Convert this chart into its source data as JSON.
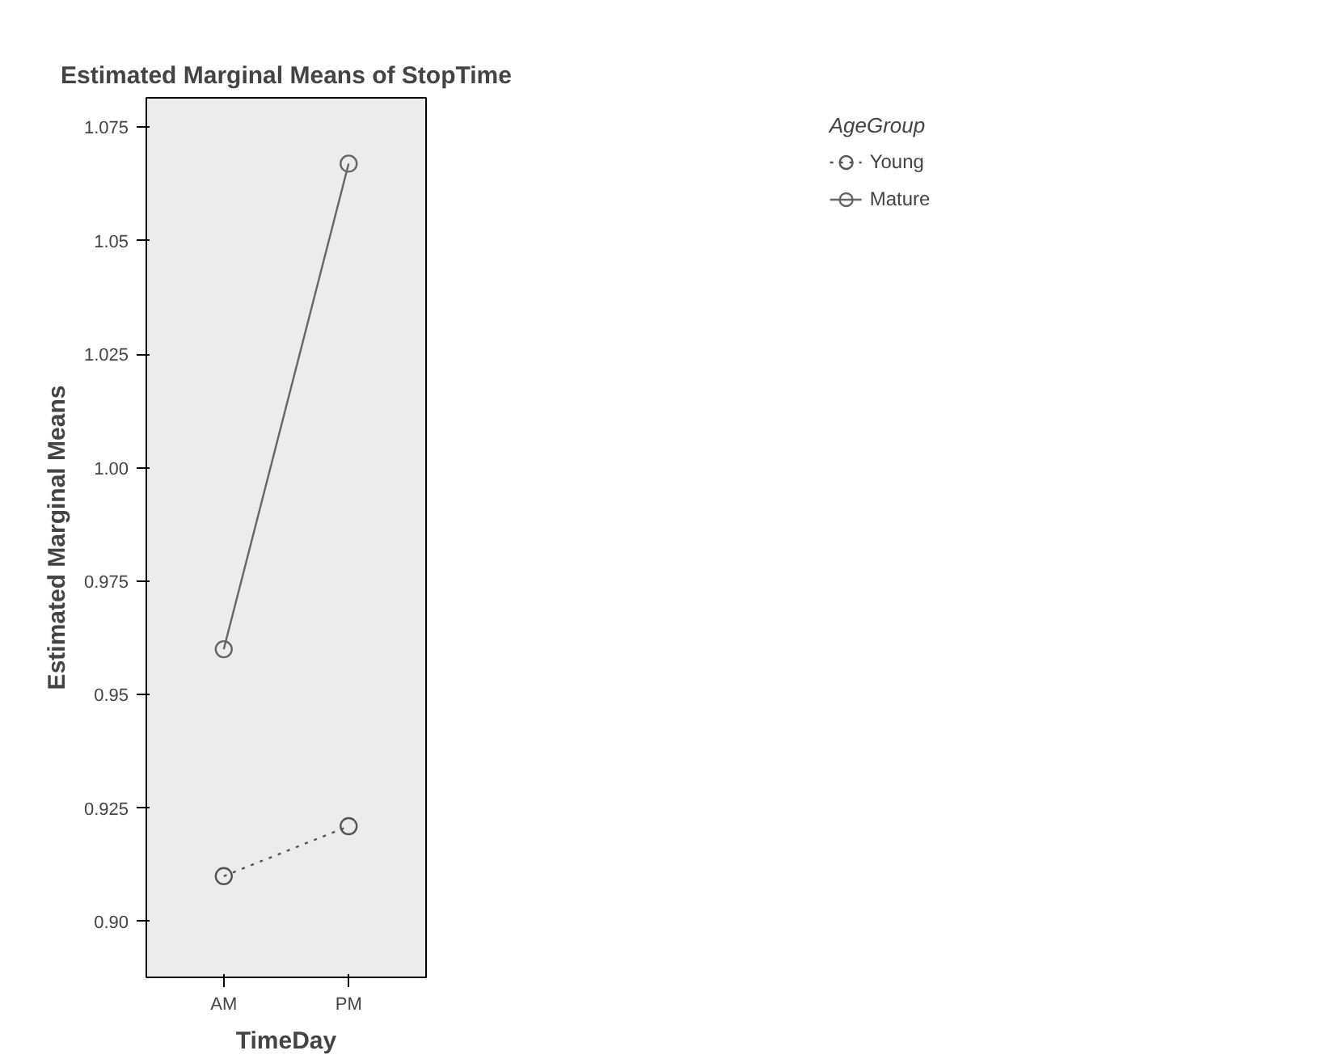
{
  "chart_data": {
    "type": "line",
    "title": "Estimated Marginal Means of StopTime",
    "xlabel": "TimeDay",
    "ylabel": "Estimated Marginal Means",
    "legend_title": "AgeGroup",
    "categories": [
      "AM",
      "PM"
    ],
    "series": [
      {
        "name": "Young",
        "color": "#555555",
        "values": [
          0.91,
          0.921
        ],
        "line_style": "dotted"
      },
      {
        "name": "Mature",
        "color": "#666666",
        "values": [
          0.96,
          1.067
        ],
        "line_style": "solid"
      }
    ],
    "ylim": [
      0.8877,
      1.0815
    ],
    "yticks": [
      {
        "value": 0.9,
        "label": "0.90"
      },
      0.925,
      {
        "value": 0.95,
        "label": "0.95"
      },
      0.975,
      {
        "value": 1.0,
        "label": "1.00"
      },
      1.025,
      {
        "value": 1.05,
        "label": "1.05"
      },
      1.075
    ],
    "marker": "circle",
    "legend": "top right",
    "grid": false
  }
}
